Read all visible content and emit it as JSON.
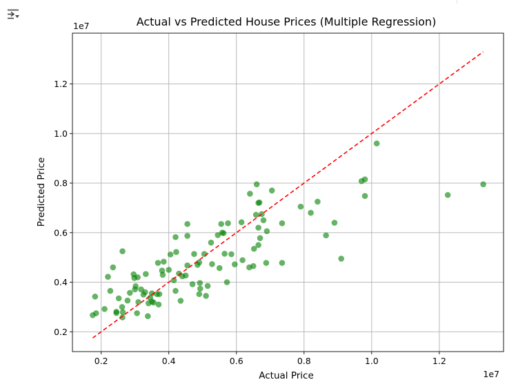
{
  "toolbar": {
    "icon": "output-actions-icon"
  },
  "chart_data": {
    "type": "scatter",
    "title": "Actual vs Predicted House Prices (Multiple Regression)",
    "xlabel": "Actual Price",
    "ylabel": "Predicted Price",
    "x_offset_label": "1e7",
    "y_offset_label": "1e7",
    "xlim": [
      1.15,
      13.9
    ],
    "ylim": [
      1.2,
      14.05
    ],
    "x_scale": 10000000,
    "y_scale": 10000000,
    "xticks": [
      {
        "value": 2,
        "label": "0.2"
      },
      {
        "value": 4,
        "label": "0.4"
      },
      {
        "value": 6,
        "label": "0.6"
      },
      {
        "value": 8,
        "label": "0.8"
      },
      {
        "value": 10,
        "label": "1.0"
      },
      {
        "value": 12,
        "label": "1.2"
      }
    ],
    "yticks": [
      {
        "value": 2,
        "label": "0.2"
      },
      {
        "value": 4,
        "label": "0.4"
      },
      {
        "value": 6,
        "label": "0.6"
      },
      {
        "value": 8,
        "label": "0.8"
      },
      {
        "value": 10,
        "label": "1.0"
      },
      {
        "value": 12,
        "label": "1.2"
      }
    ],
    "grid": true,
    "marker_color": "#008000",
    "marker_alpha": 0.6,
    "reference_line": {
      "style": "dashed",
      "color": "#ff0000",
      "x": [
        1.75,
        13.3
      ],
      "y": [
        1.75,
        13.3
      ]
    },
    "points": [
      [
        1.75,
        2.67
      ],
      [
        1.82,
        3.42
      ],
      [
        1.85,
        2.75
      ],
      [
        2.1,
        2.92
      ],
      [
        2.2,
        4.22
      ],
      [
        2.27,
        3.65
      ],
      [
        2.35,
        4.6
      ],
      [
        2.45,
        2.76
      ],
      [
        2.45,
        2.81
      ],
      [
        2.52,
        3.35
      ],
      [
        2.62,
        3.0
      ],
      [
        2.63,
        2.58
      ],
      [
        2.64,
        2.79
      ],
      [
        2.63,
        5.25
      ],
      [
        2.78,
        3.26
      ],
      [
        2.85,
        3.57
      ],
      [
        2.96,
        4.32
      ],
      [
        2.98,
        4.17
      ],
      [
        3.0,
        3.71
      ],
      [
        3.02,
        3.84
      ],
      [
        3.06,
        2.75
      ],
      [
        3.08,
        4.2
      ],
      [
        3.1,
        3.2
      ],
      [
        3.18,
        3.71
      ],
      [
        3.25,
        3.5
      ],
      [
        3.3,
        3.6
      ],
      [
        3.32,
        4.33
      ],
      [
        3.38,
        2.63
      ],
      [
        3.4,
        3.15
      ],
      [
        3.45,
        3.37
      ],
      [
        3.5,
        3.55
      ],
      [
        3.5,
        3.22
      ],
      [
        3.55,
        3.18
      ],
      [
        3.65,
        3.52
      ],
      [
        3.68,
        4.78
      ],
      [
        3.7,
        3.1
      ],
      [
        3.72,
        3.52
      ],
      [
        3.8,
        4.47
      ],
      [
        3.82,
        4.3
      ],
      [
        3.85,
        4.83
      ],
      [
        4.0,
        4.5
      ],
      [
        4.05,
        5.12
      ],
      [
        4.15,
        4.08
      ],
      [
        4.2,
        5.82
      ],
      [
        4.2,
        3.65
      ],
      [
        4.22,
        5.22
      ],
      [
        4.3,
        4.35
      ],
      [
        4.35,
        3.25
      ],
      [
        4.4,
        4.24
      ],
      [
        4.5,
        4.27
      ],
      [
        4.55,
        6.35
      ],
      [
        4.55,
        4.68
      ],
      [
        4.55,
        5.87
      ],
      [
        4.7,
        3.92
      ],
      [
        4.75,
        5.14
      ],
      [
        4.85,
        4.7
      ],
      [
        4.9,
        3.52
      ],
      [
        4.9,
        4.8
      ],
      [
        4.92,
        3.97
      ],
      [
        4.93,
        3.74
      ],
      [
        5.05,
        5.14
      ],
      [
        5.1,
        3.45
      ],
      [
        5.15,
        3.85
      ],
      [
        5.25,
        5.6
      ],
      [
        5.28,
        4.73
      ],
      [
        5.45,
        5.9
      ],
      [
        5.5,
        4.57
      ],
      [
        5.55,
        6.35
      ],
      [
        5.58,
        6.0
      ],
      [
        5.62,
        5.98
      ],
      [
        5.65,
        5.15
      ],
      [
        5.72,
        4.0
      ],
      [
        5.75,
        6.38
      ],
      [
        5.85,
        5.13
      ],
      [
        5.95,
        4.72
      ],
      [
        6.15,
        6.42
      ],
      [
        6.18,
        4.89
      ],
      [
        6.38,
        4.6
      ],
      [
        6.4,
        7.57
      ],
      [
        6.5,
        4.65
      ],
      [
        6.52,
        5.35
      ],
      [
        6.58,
        6.72
      ],
      [
        6.6,
        7.95
      ],
      [
        6.65,
        5.5
      ],
      [
        6.65,
        6.2
      ],
      [
        6.65,
        7.2
      ],
      [
        6.68,
        7.22
      ],
      [
        6.7,
        5.78
      ],
      [
        6.75,
        6.75
      ],
      [
        6.8,
        6.5
      ],
      [
        6.88,
        4.78
      ],
      [
        6.9,
        6.06
      ],
      [
        7.05,
        7.7
      ],
      [
        7.35,
        6.38
      ],
      [
        7.35,
        4.78
      ],
      [
        7.9,
        7.05
      ],
      [
        8.2,
        6.8
      ],
      [
        8.4,
        7.25
      ],
      [
        8.65,
        5.89
      ],
      [
        8.9,
        6.4
      ],
      [
        9.1,
        4.95
      ],
      [
        9.7,
        8.08
      ],
      [
        9.8,
        8.15
      ],
      [
        9.8,
        7.48
      ],
      [
        10.15,
        9.6
      ],
      [
        12.25,
        7.52
      ],
      [
        13.3,
        7.95
      ]
    ]
  }
}
